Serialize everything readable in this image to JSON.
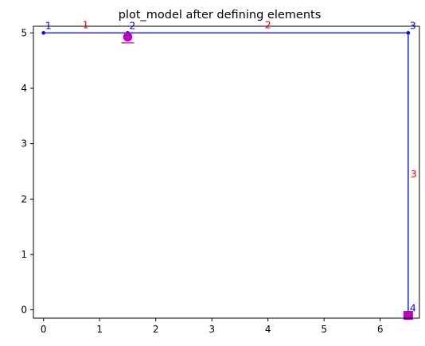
{
  "chart_data": {
    "type": "line",
    "title": "plot_model after defining elements",
    "xlabel": "",
    "ylabel": "",
    "xlim": [
      -0.18,
      6.7
    ],
    "ylim": [
      -0.15,
      5.12
    ],
    "x_ticks": [
      0,
      1,
      2,
      3,
      4,
      5,
      6
    ],
    "y_ticks": [
      0,
      1,
      2,
      3,
      4,
      5
    ],
    "grid": false,
    "nodes": [
      {
        "label": "1",
        "x": 0.0,
        "y": 5.0
      },
      {
        "label": "2",
        "x": 1.5,
        "y": 5.0
      },
      {
        "label": "3",
        "x": 6.5,
        "y": 5.0
      },
      {
        "label": "4",
        "x": 6.5,
        "y": -0.1
      }
    ],
    "elements": [
      {
        "label": "1",
        "from": 0,
        "to": 1
      },
      {
        "label": "2",
        "from": 1,
        "to": 2
      },
      {
        "label": "3",
        "from": 2,
        "to": 3
      }
    ],
    "supports": [
      {
        "type": "roller",
        "node": 1
      },
      {
        "type": "fixed",
        "node": 3
      }
    ],
    "colors": {
      "element_line": "#0000ff",
      "node_label": "#0000ff",
      "element_label": "#ff0000",
      "support": "#c000c0"
    }
  }
}
